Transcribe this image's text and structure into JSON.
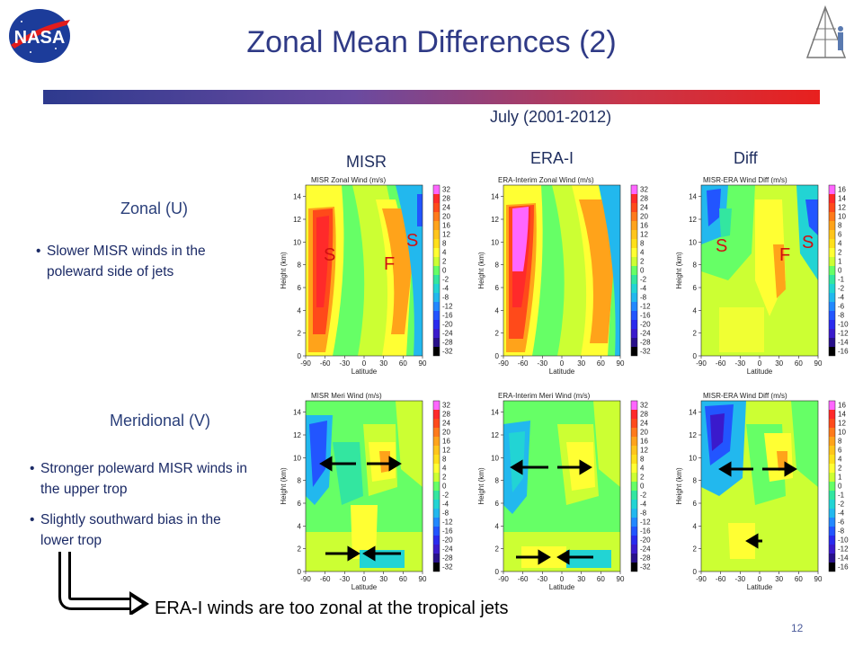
{
  "slide": {
    "title": "Zonal Mean Differences (2)",
    "period": "July (2001-2012)",
    "page_number": "12",
    "logo_text": "NASA",
    "columns": [
      "MISR",
      "ERA-I",
      "Diff"
    ],
    "rows": [
      {
        "label": "Zonal (U)",
        "bullets": [
          "Slower MISR winds in the poleward side of jets"
        ]
      },
      {
        "label": "Meridional (V)",
        "bullets": [
          "Stronger poleward MISR winds in the upper trop",
          "Slightly southward bias in the lower trop"
        ]
      }
    ],
    "bottom_note": "ERA-I winds are too zonal at the tropical jets"
  },
  "panels": {
    "titles": [
      "MISR Zonal Wind (m/s)",
      "ERA-Interim Zonal Wind (m/s)",
      "MISR-ERA Wind Diff (m/s)",
      "MISR Meri Wind (m/s)",
      "ERA-Interim Meri Wind (m/s)",
      "MISR-ERA Wind Diff (m/s)"
    ],
    "xlabel": "Latitude",
    "ylabel": "Height (km)",
    "x_ticks": [
      "-90",
      "-60",
      "-30",
      "0",
      "30",
      "60",
      "90"
    ],
    "y_ticks": [
      "0",
      "2",
      "4",
      "6",
      "8",
      "10",
      "12",
      "14"
    ],
    "colorbar_wind": [
      "32",
      "28",
      "24",
      "20",
      "16",
      "12",
      "8",
      "4",
      "2",
      "0",
      "-2",
      "-4",
      "-8",
      "-12",
      "-16",
      "-20",
      "-24",
      "-28",
      "-32"
    ],
    "colorbar_diff": [
      "16",
      "14",
      "12",
      "10",
      "8",
      "6",
      "4",
      "2",
      "1",
      "0",
      "-1",
      "-2",
      "-4",
      "-6",
      "-8",
      "-10",
      "-12",
      "-14",
      "-16"
    ],
    "annotations": {
      "zonal_misr": [
        "S",
        "F",
        "S"
      ],
      "zonal_diff": [
        "S",
        "F",
        "S"
      ]
    },
    "colors": {
      "wind_scale": [
        "#ff66ff",
        "#ff2a2a",
        "#ff4a1a",
        "#ff7a1a",
        "#ffa31a",
        "#ffc51a",
        "#ffe01a",
        "#ffff33",
        "#ccff33",
        "#66ff66",
        "#33e6a0",
        "#22d4d4",
        "#22b8ee",
        "#2288ff",
        "#2255ff",
        "#2a2aee",
        "#3a1acc",
        "#28108a",
        "#000000"
      ]
    }
  }
}
